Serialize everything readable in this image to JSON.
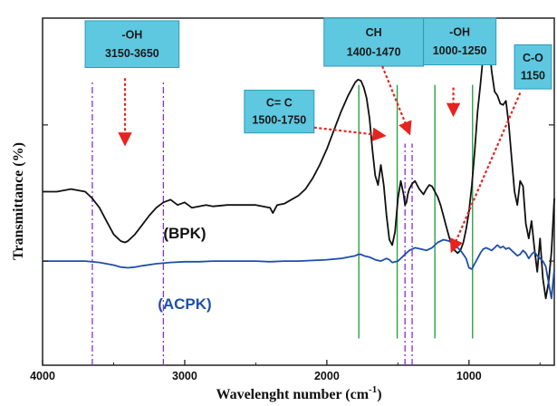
{
  "chart_data": {
    "type": "line",
    "title": "",
    "xlabel": "Wavelenght number (cm",
    "xlabel_sup": "-1",
    "xlabel_close": ")",
    "ylabel": "Transmittance (%)",
    "xlim": [
      4000,
      400
    ],
    "x_reversed": true,
    "x_ticks": [
      4000,
      3000,
      2000,
      1000
    ],
    "y_ticks_unlabeled": [
      1.8,
      0.78
    ],
    "ylim": [
      0,
      2.6
    ],
    "grid": false,
    "series": [
      {
        "name": "(BPK)",
        "color": "#111111",
        "x": [
          4000,
          3900,
          3800,
          3700,
          3650,
          3600,
          3550,
          3500,
          3450,
          3420,
          3400,
          3350,
          3300,
          3250,
          3200,
          3150,
          3100,
          3050,
          3000,
          2950,
          2900,
          2850,
          2800,
          2700,
          2600,
          2500,
          2400,
          2380,
          2350,
          2300,
          2250,
          2200,
          2150,
          2100,
          2050,
          2000,
          1950,
          1900,
          1850,
          1800,
          1780,
          1760,
          1740,
          1720,
          1700,
          1680,
          1660,
          1640,
          1620,
          1600,
          1580,
          1560,
          1540,
          1520,
          1500,
          1480,
          1460,
          1450,
          1440,
          1430,
          1420,
          1400,
          1380,
          1350,
          1320,
          1300,
          1280,
          1260,
          1240,
          1220,
          1200,
          1180,
          1160,
          1140,
          1120,
          1100,
          1080,
          1060,
          1040,
          1020,
          1000,
          980,
          960,
          940,
          920,
          900,
          880,
          860,
          840,
          820,
          800,
          780,
          760,
          740,
          720,
          700,
          680,
          660,
          640,
          620,
          600,
          580,
          560,
          540,
          520,
          500,
          480,
          460,
          440,
          420,
          400
        ],
        "y": [
          1.3,
          1.3,
          1.32,
          1.3,
          1.25,
          1.18,
          1.08,
          0.98,
          0.93,
          0.92,
          0.93,
          0.98,
          1.05,
          1.12,
          1.18,
          1.22,
          1.24,
          1.2,
          1.22,
          1.18,
          1.19,
          1.2,
          1.19,
          1.2,
          1.2,
          1.2,
          1.18,
          1.14,
          1.2,
          1.21,
          1.24,
          1.27,
          1.32,
          1.4,
          1.5,
          1.62,
          1.76,
          1.9,
          2.02,
          2.12,
          2.14,
          2.13,
          2.08,
          2.0,
          1.85,
          1.62,
          1.42,
          1.35,
          1.5,
          1.35,
          1.12,
          0.94,
          0.9,
          1.0,
          1.25,
          1.38,
          1.28,
          1.2,
          1.22,
          1.28,
          1.32,
          1.36,
          1.38,
          1.32,
          1.28,
          1.32,
          1.35,
          1.34,
          1.3,
          1.26,
          1.2,
          1.12,
          1.04,
          0.96,
          0.9,
          0.86,
          0.84,
          0.86,
          0.92,
          1.02,
          1.15,
          1.35,
          1.6,
          1.9,
          2.1,
          2.32,
          2.48,
          2.42,
          2.2,
          2.05,
          2.02,
          1.96,
          1.95,
          1.98,
          1.8,
          1.55,
          1.3,
          1.2,
          1.38,
          1.34,
          1.06,
          0.95,
          1.08,
          0.88,
          0.7,
          0.95,
          0.65,
          0.5,
          0.62,
          0.85,
          1.25
        ]
      },
      {
        "name": "(ACPK)",
        "color": "#1f4fa8",
        "x": [
          4000,
          3900,
          3800,
          3700,
          3600,
          3500,
          3450,
          3400,
          3350,
          3300,
          3200,
          3100,
          3000,
          2900,
          2800,
          2700,
          2600,
          2500,
          2400,
          2300,
          2200,
          2100,
          2000,
          1900,
          1850,
          1800,
          1780,
          1760,
          1740,
          1700,
          1660,
          1620,
          1600,
          1580,
          1560,
          1540,
          1500,
          1460,
          1420,
          1380,
          1340,
          1300,
          1260,
          1220,
          1180,
          1140,
          1100,
          1060,
          1040,
          1020,
          1000,
          980,
          960,
          940,
          920,
          900,
          880,
          860,
          840,
          820,
          800,
          780,
          760,
          740,
          720,
          700,
          680,
          660,
          640,
          620,
          600,
          580,
          560,
          540,
          520,
          500,
          480,
          460,
          440,
          420,
          400
        ],
        "y": [
          0.78,
          0.78,
          0.78,
          0.78,
          0.77,
          0.75,
          0.735,
          0.73,
          0.735,
          0.745,
          0.76,
          0.77,
          0.775,
          0.775,
          0.78,
          0.78,
          0.78,
          0.78,
          0.775,
          0.78,
          0.78,
          0.785,
          0.79,
          0.8,
          0.81,
          0.82,
          0.83,
          0.83,
          0.82,
          0.81,
          0.79,
          0.78,
          0.79,
          0.8,
          0.79,
          0.77,
          0.78,
          0.82,
          0.86,
          0.88,
          0.87,
          0.86,
          0.88,
          0.92,
          0.94,
          0.93,
          0.9,
          0.86,
          0.83,
          0.8,
          0.73,
          0.72,
          0.76,
          0.8,
          0.84,
          0.87,
          0.88,
          0.87,
          0.86,
          0.88,
          0.9,
          0.88,
          0.89,
          0.87,
          0.88,
          0.86,
          0.84,
          0.82,
          0.83,
          0.86,
          0.84,
          0.8,
          0.83,
          0.85,
          0.82,
          0.8,
          0.78,
          0.74,
          0.62,
          0.5,
          0.72
        ]
      }
    ],
    "series_labels": [
      {
        "text": "(BPK)",
        "x": 3000,
        "y": 0.95,
        "color": "#111111"
      },
      {
        "text": "(ACPK)",
        "x": 3000,
        "y": 0.42,
        "color": "#1f4fa8"
      }
    ],
    "green_lines_x": [
      1775,
      1505,
      1240,
      975
    ],
    "purple_dashdot_x": [
      3650,
      3150,
      1450,
      1400
    ],
    "annotations": [
      {
        "lines": [
          "-OH",
          "3150-3650"
        ],
        "box_x": [
          3700,
          3040
        ],
        "box_y": [
          2.58,
          2.23
        ],
        "arrow_from": [
          3420,
          2.15
        ],
        "arrow_to": [
          3420,
          1.66
        ]
      },
      {
        "lines": [
          "CH",
          "1400-1470"
        ],
        "box_x": [
          2020,
          1320
        ],
        "box_y": [
          2.6,
          2.24
        ],
        "arrow_from": [
          1610,
          2.24
        ],
        "arrow_to": [
          1420,
          1.74
        ]
      },
      {
        "lines": [
          "-OH",
          "1000-1250"
        ],
        "box_x": [
          1320,
          810
        ],
        "box_y": [
          2.6,
          2.25
        ],
        "arrow_from": [
          1110,
          2.08
        ],
        "arrow_to": [
          1110,
          1.88
        ]
      },
      {
        "lines": [
          "C= C",
          "1500-1750"
        ],
        "box_x": [
          2580,
          2090
        ],
        "box_y": [
          2.06,
          1.74
        ],
        "arrow_from": [
          2090,
          1.78
        ],
        "arrow_to": [
          1600,
          1.72
        ]
      },
      {
        "lines": [
          "C-O",
          "1150"
        ],
        "box_x": [
          680,
          420
        ],
        "box_y": [
          2.4,
          2.07
        ],
        "arrow_from": [
          640,
          2.04
        ],
        "arrow_to": [
          1120,
          0.86
        ]
      }
    ]
  }
}
